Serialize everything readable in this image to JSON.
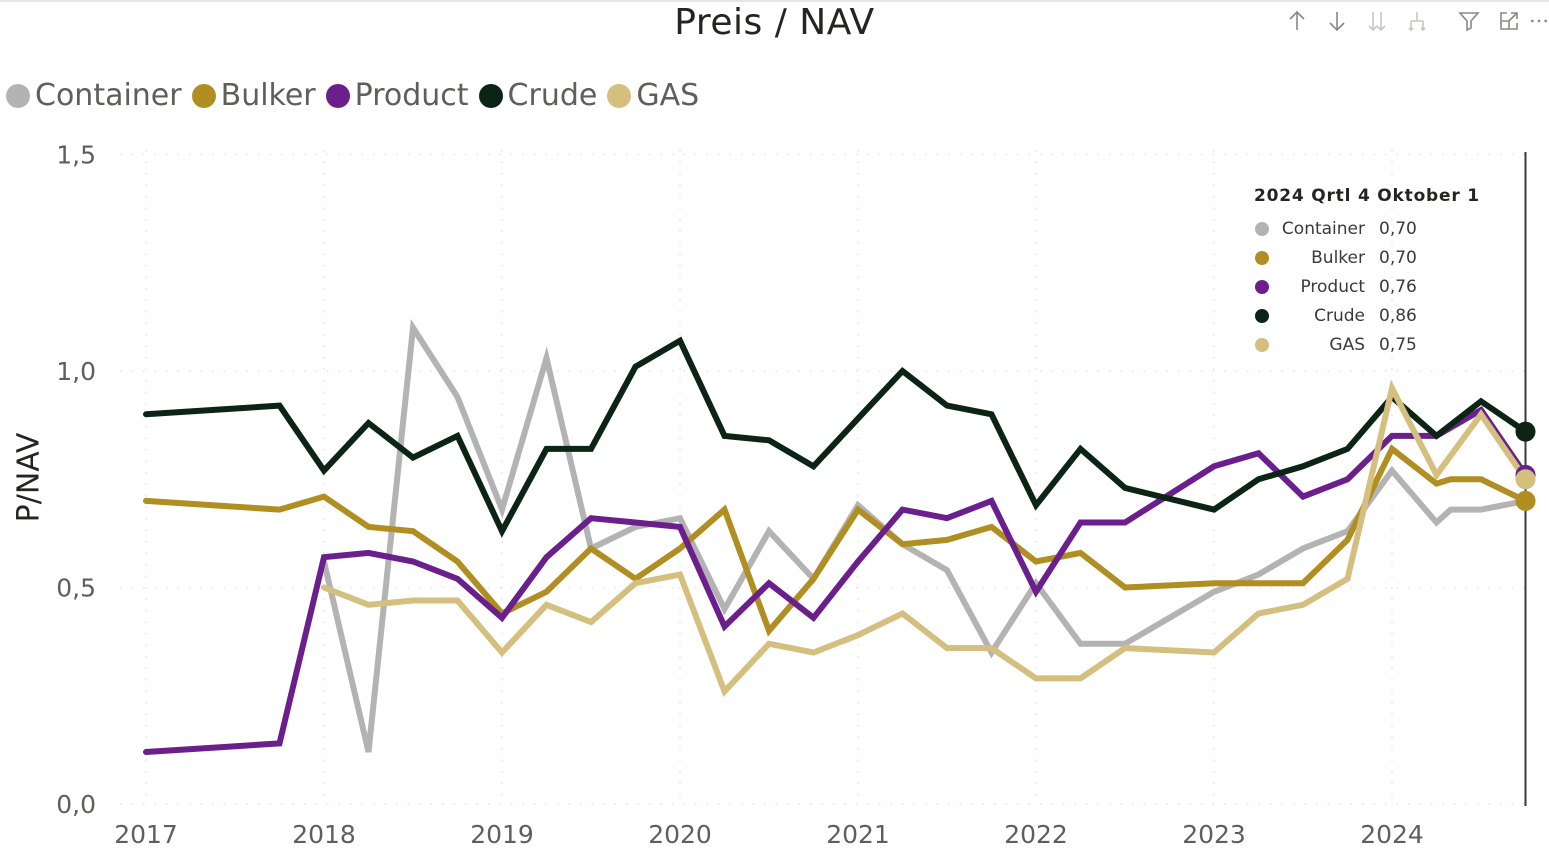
{
  "visual": {
    "title": "Preis / NAV",
    "toolbar": [
      {
        "name": "sort-ascending-icon",
        "label": "↑"
      },
      {
        "name": "sort-descending-icon",
        "label": "↓"
      },
      {
        "name": "expand-all-down-icon",
        "label": "⇊"
      },
      {
        "name": "expand-hierarchy-icon",
        "label": "⊥"
      },
      {
        "name": "filter-icon",
        "label": "filter"
      },
      {
        "name": "focus-mode-icon",
        "label": "focus"
      },
      {
        "name": "more-options-icon",
        "label": "⋯"
      }
    ]
  },
  "tooltip": {
    "title": "2024 Qrtl 4 Oktober 1",
    "rows": [
      {
        "name": "Container",
        "value": "0,70",
        "color": "#b3b3b3"
      },
      {
        "name": "Bulker",
        "value": "0,70",
        "color": "#b08e22"
      },
      {
        "name": "Product",
        "value": "0,76",
        "color": "#6a1f8c"
      },
      {
        "name": "Crude",
        "value": "0,86",
        "color": "#0b2416"
      },
      {
        "name": "GAS",
        "value": "0,75",
        "color": "#d4bf7e"
      }
    ]
  },
  "chart_data": {
    "type": "line",
    "title": "Preis / NAV",
    "xlabel": "",
    "ylabel": "P/NAV",
    "ylim": [
      0,
      1.5
    ],
    "yticks": [
      "0,0",
      "0,5",
      "1,0",
      "1,5"
    ],
    "ytick_values": [
      0,
      0.5,
      1.0,
      1.5
    ],
    "xticks": [
      "2017",
      "2018",
      "2019",
      "2020",
      "2021",
      "2022",
      "2023",
      "2024"
    ],
    "xlim": [
      2017,
      2024.8
    ],
    "grid": true,
    "legend_position": "top-left",
    "cursor_x": 2024.75,
    "series": [
      {
        "name": "Container",
        "color": "#b3b3b3",
        "x": [
          2018.0,
          2018.25,
          2018.5,
          2018.75,
          2019.0,
          2019.25,
          2019.5,
          2019.75,
          2020.0,
          2020.25,
          2020.5,
          2020.75,
          2021.0,
          2021.25,
          2021.5,
          2021.75,
          2022.0,
          2022.25,
          2022.5,
          2023.0,
          2023.25,
          2023.5,
          2023.75,
          2024.0,
          2024.25,
          2024.33,
          2024.5,
          2024.75
        ],
        "y": [
          0.56,
          0.12,
          1.1,
          0.94,
          0.68,
          1.03,
          0.59,
          0.64,
          0.66,
          0.45,
          0.63,
          0.52,
          0.69,
          0.6,
          0.54,
          0.35,
          0.51,
          0.37,
          0.37,
          0.49,
          0.53,
          0.59,
          0.63,
          0.77,
          0.65,
          0.68,
          0.68,
          0.7
        ]
      },
      {
        "name": "Bulker",
        "color": "#b08e22",
        "x": [
          2017.0,
          2017.75,
          2018.0,
          2018.25,
          2018.5,
          2018.75,
          2019.0,
          2019.25,
          2019.5,
          2019.75,
          2020.0,
          2020.25,
          2020.5,
          2020.75,
          2021.0,
          2021.25,
          2021.5,
          2021.75,
          2022.0,
          2022.25,
          2022.5,
          2023.0,
          2023.25,
          2023.5,
          2023.75,
          2024.0,
          2024.25,
          2024.33,
          2024.5,
          2024.75
        ],
        "y": [
          0.7,
          0.68,
          0.71,
          0.64,
          0.63,
          0.56,
          0.44,
          0.49,
          0.59,
          0.52,
          0.59,
          0.68,
          0.4,
          0.52,
          0.68,
          0.6,
          0.61,
          0.64,
          0.56,
          0.58,
          0.5,
          0.51,
          0.51,
          0.51,
          0.61,
          0.82,
          0.74,
          0.75,
          0.75,
          0.7
        ]
      },
      {
        "name": "Product",
        "color": "#6a1f8c",
        "x": [
          2017.0,
          2017.75,
          2018.0,
          2018.25,
          2018.5,
          2018.75,
          2019.0,
          2019.25,
          2019.5,
          2019.75,
          2020.0,
          2020.25,
          2020.5,
          2020.75,
          2021.0,
          2021.25,
          2021.5,
          2021.75,
          2022.0,
          2022.25,
          2022.5,
          2023.0,
          2023.25,
          2023.5,
          2023.75,
          2024.0,
          2024.25,
          2024.5,
          2024.75
        ],
        "y": [
          0.12,
          0.14,
          0.57,
          0.58,
          0.56,
          0.52,
          0.43,
          0.57,
          0.66,
          0.65,
          0.64,
          0.41,
          0.51,
          0.43,
          0.56,
          0.68,
          0.66,
          0.7,
          0.49,
          0.65,
          0.65,
          0.78,
          0.81,
          0.71,
          0.75,
          0.85,
          0.85,
          0.91,
          0.76
        ]
      },
      {
        "name": "Crude",
        "color": "#0b2416",
        "x": [
          2017.0,
          2017.75,
          2018.0,
          2018.25,
          2018.5,
          2018.75,
          2019.0,
          2019.25,
          2019.5,
          2019.75,
          2020.0,
          2020.25,
          2020.5,
          2020.75,
          2021.0,
          2021.25,
          2021.5,
          2021.75,
          2022.0,
          2022.25,
          2022.5,
          2023.0,
          2023.25,
          2023.5,
          2023.75,
          2024.0,
          2024.25,
          2024.5,
          2024.75
        ],
        "y": [
          0.9,
          0.92,
          0.77,
          0.88,
          0.8,
          0.85,
          0.63,
          0.82,
          0.82,
          1.01,
          1.07,
          0.85,
          0.84,
          0.78,
          0.89,
          1.0,
          0.92,
          0.9,
          0.69,
          0.82,
          0.73,
          0.68,
          0.75,
          0.78,
          0.82,
          0.94,
          0.85,
          0.93,
          0.86
        ]
      },
      {
        "name": "GAS",
        "color": "#d4bf7e",
        "x": [
          2018.0,
          2018.25,
          2018.5,
          2018.75,
          2019.0,
          2019.25,
          2019.5,
          2019.75,
          2020.0,
          2020.25,
          2020.5,
          2020.75,
          2021.0,
          2021.25,
          2021.5,
          2021.75,
          2022.0,
          2022.25,
          2022.5,
          2023.0,
          2023.25,
          2023.5,
          2023.75,
          2024.0,
          2024.25,
          2024.5,
          2024.75
        ],
        "y": [
          0.5,
          0.46,
          0.47,
          0.47,
          0.35,
          0.46,
          0.42,
          0.51,
          0.53,
          0.26,
          0.37,
          0.35,
          0.39,
          0.44,
          0.36,
          0.36,
          0.29,
          0.29,
          0.36,
          0.35,
          0.44,
          0.46,
          0.52,
          0.96,
          0.76,
          0.9,
          0.75
        ]
      }
    ]
  }
}
